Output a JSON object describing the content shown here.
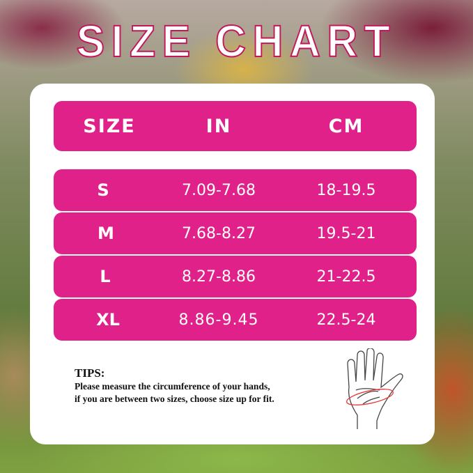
{
  "title": "SIZE CHART",
  "table": {
    "headers": [
      "SIZE",
      "IN",
      "CM"
    ],
    "rows": [
      [
        "S",
        "7.09-7.68",
        "18-19.5"
      ],
      [
        "M",
        "7.68-8.27",
        "19.5-21"
      ],
      [
        "L",
        "8.27-8.86",
        "21-22.5"
      ],
      [
        "XL",
        "8.86-9.45",
        "22.5-24"
      ]
    ]
  },
  "tips": {
    "heading": "TIPS:",
    "line1": "Please measure the circumference of your hands,",
    "line2": "if you are between two sizes, choose size up for fit."
  },
  "colors": {
    "accent": "#e0218a",
    "card": "#ffffff"
  },
  "icons": {
    "hand": "hand-measure-icon"
  }
}
